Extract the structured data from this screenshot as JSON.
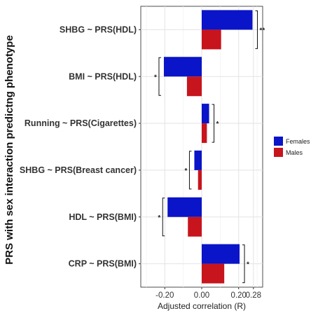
{
  "chart_data": {
    "type": "bar",
    "orientation": "horizontal",
    "title": "",
    "xlabel": "Adjusted correlation (R)",
    "ylabel": "PRS with sex interaction predictng phenotype",
    "xlim": [
      -0.33,
      0.33
    ],
    "xticks": [
      -0.2,
      0.0,
      0.2,
      0.28
    ],
    "xtick_labels": [
      "-0.20",
      "0.00",
      "0.20",
      "0.28"
    ],
    "grid": true,
    "legend_position": "right",
    "categories": [
      "SHBG ~ PRS(HDL)",
      "BMI ~ PRS(HDL)",
      "Running ~ PRS(Cigarettes)",
      "SHBG ~ PRS(Breast cancer)",
      "HDL ~ PRS(BMI)",
      "CRP ~ PRS(BMI)"
    ],
    "series": [
      {
        "name": "Females",
        "color": "#0a14c8",
        "values": [
          0.275,
          -0.205,
          0.04,
          -0.04,
          -0.185,
          0.205
        ]
      },
      {
        "name": "Males",
        "color": "#c8141c",
        "values": [
          0.105,
          -0.08,
          0.028,
          -0.02,
          -0.075,
          0.122
        ]
      }
    ],
    "significance": [
      "**",
      "*",
      "*",
      "*",
      "*",
      "*"
    ]
  }
}
